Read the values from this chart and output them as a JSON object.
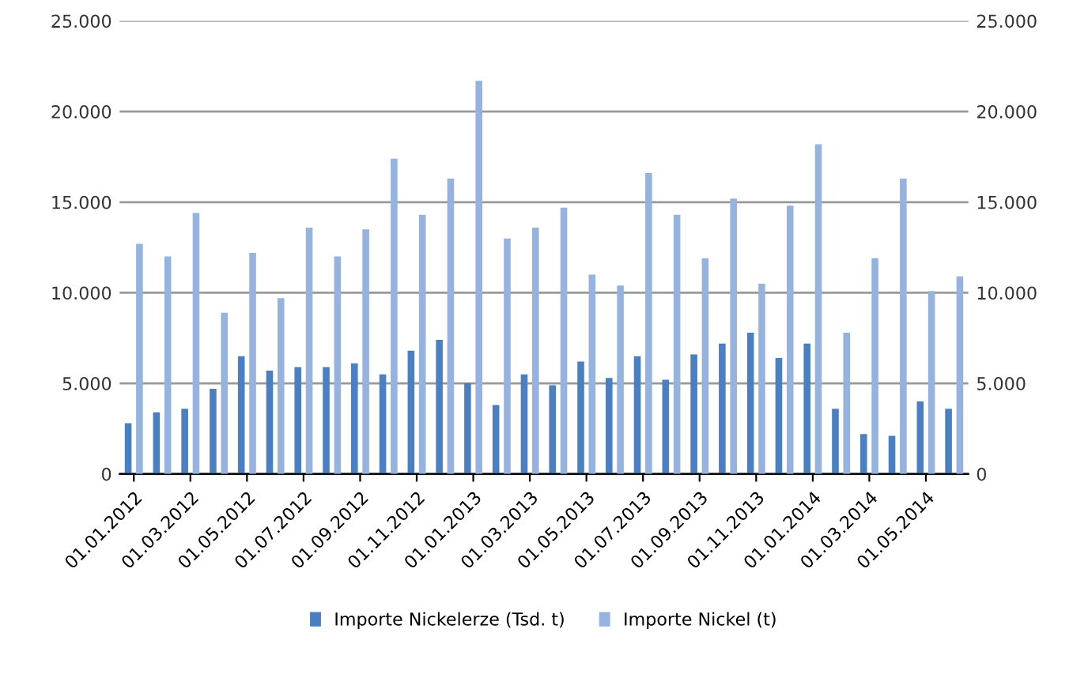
{
  "chart_data": {
    "type": "bar",
    "categories": [
      "01.01.2012",
      null,
      "01.03.2012",
      null,
      "01.05.2012",
      null,
      "01.07.2012",
      null,
      "01.09.2012",
      null,
      "01.11.2012",
      null,
      "01.01.2013",
      null,
      "01.03.2013",
      null,
      "01.05.2013",
      null,
      "01.07.2013",
      null,
      "01.09.2013",
      null,
      "01.11.2013",
      null,
      "01.01.2014",
      null,
      "01.03.2014",
      null,
      "01.05.2014",
      null
    ],
    "series": [
      {
        "name": "Importe Nickelerze (Tsd. t)",
        "color": "#4a7fc1",
        "values": [
          2800,
          3400,
          3600,
          4700,
          6500,
          5700,
          5900,
          5900,
          6100,
          5500,
          6800,
          7400,
          5000,
          3800,
          5500,
          4900,
          6200,
          5300,
          6500,
          5200,
          6600,
          7200,
          7800,
          6400,
          7200,
          3600,
          2200,
          2100,
          4000,
          3600
        ]
      },
      {
        "name": "Importe Nickel (t)",
        "color": "#95b3de",
        "axis": "y2",
        "values": [
          12700,
          12000,
          14400,
          8900,
          12200,
          9700,
          13600,
          12000,
          13500,
          17400,
          14300,
          16300,
          21700,
          13000,
          13600,
          14700,
          11000,
          10400,
          16600,
          14300,
          11900,
          15200,
          10500,
          14800,
          18200,
          7800,
          11900,
          16300,
          10100,
          10900
        ]
      }
    ],
    "ylim": [
      0,
      25000
    ],
    "yticks": [
      {
        "value": 0,
        "label": "0"
      },
      {
        "value": 5000,
        "label": "5.000"
      },
      {
        "value": 10000,
        "label": "10.000"
      },
      {
        "value": 15000,
        "label": "15.000"
      },
      {
        "value": 20000,
        "label": "20.000"
      },
      {
        "value": 25000,
        "label": "25.000"
      }
    ],
    "y2lim": [
      0,
      25000
    ],
    "y2ticks": [
      {
        "value": 0,
        "label": "0"
      },
      {
        "value": 5000,
        "label": "5.000"
      },
      {
        "value": 10000,
        "label": "10.000"
      },
      {
        "value": 15000,
        "label": "15.000"
      },
      {
        "value": 20000,
        "label": "20.000"
      },
      {
        "value": 25000,
        "label": "25.000"
      }
    ],
    "grid": "y",
    "legend": "bottom"
  }
}
